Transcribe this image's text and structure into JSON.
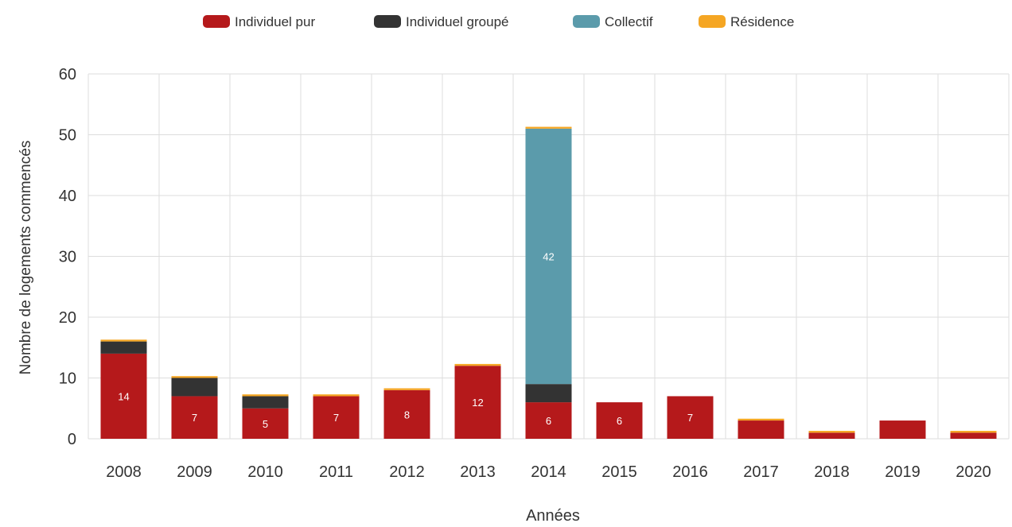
{
  "chart_data": {
    "type": "bar",
    "stacked": true,
    "categories": [
      "2008",
      "2009",
      "2010",
      "2011",
      "2012",
      "2013",
      "2014",
      "2015",
      "2016",
      "2017",
      "2018",
      "2019",
      "2020"
    ],
    "series": [
      {
        "name": "Individuel pur",
        "color": "#b5191b",
        "values": [
          14,
          7,
          5,
          7,
          8,
          12,
          6,
          6,
          7,
          3,
          1,
          3,
          1
        ]
      },
      {
        "name": "Individuel groupé",
        "color": "#333333",
        "values": [
          2,
          3,
          2,
          0,
          0,
          0,
          3,
          0,
          0,
          0,
          0,
          0,
          0
        ]
      },
      {
        "name": "Collectif",
        "color": "#5b9bab",
        "values": [
          0,
          0,
          0,
          0,
          0,
          0,
          42,
          0,
          0,
          0,
          0,
          0,
          0
        ]
      },
      {
        "name": "Résidence",
        "color": "#f5a623",
        "values": [
          0.3,
          0.3,
          0.3,
          0.3,
          0.3,
          0.3,
          0.3,
          0,
          0,
          0.3,
          0.3,
          0,
          0.3
        ]
      }
    ],
    "data_labels": {
      "Individuel pur": [
        "14",
        "7",
        "5",
        "7",
        "8",
        "12",
        "6",
        "6",
        "7",
        "",
        "",
        "",
        ""
      ],
      "Collectif": [
        "",
        "",
        "",
        "",
        "",
        "",
        "42",
        "",
        "",
        "",
        "",
        "",
        ""
      ]
    },
    "xlabel": "Années",
    "ylabel": "Nombre de logements commencés",
    "ylim": [
      0,
      60
    ],
    "yticks": [
      0,
      10,
      20,
      30,
      40,
      50,
      60
    ],
    "grid": true,
    "legend_position": "top-center"
  }
}
